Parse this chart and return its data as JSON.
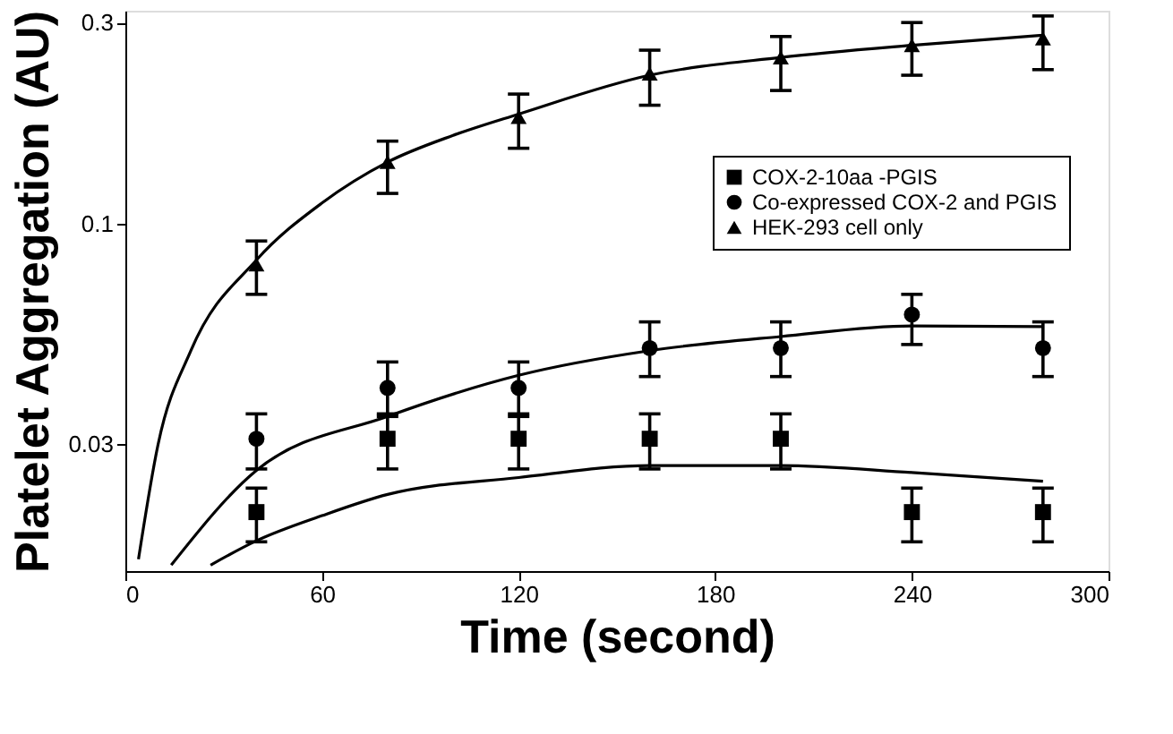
{
  "chart_data": {
    "type": "scatter",
    "xlabel": "Time (second)",
    "ylabel": "Platelet Aggregation (AU)",
    "log": "y",
    "xlim": [
      0,
      300
    ],
    "xticks": [
      0,
      60,
      120,
      180,
      240,
      300
    ],
    "ylim": [
      0.015,
      0.32
    ],
    "yticks": [
      0.03,
      0.1,
      0.3
    ],
    "grid": false,
    "legend": "top right",
    "series": [
      {
        "name": "COX-2-10aa -PGIS",
        "marker": "square",
        "color": "#000000",
        "x": [
          40,
          80,
          120,
          160,
          200,
          240,
          280
        ],
        "values": [
          0.0207,
          0.0309,
          0.0309,
          0.0309,
          0.0309,
          0.0207,
          0.0207
        ],
        "errors": [
          [
            0.0176,
            0.0236
          ],
          [
            0.0262,
            0.0354
          ],
          [
            0.0262,
            0.0354
          ],
          [
            0.0262,
            0.0354
          ],
          [
            0.0262,
            0.0354
          ],
          [
            0.0176,
            0.0236
          ],
          [
            0.0176,
            0.0236
          ]
        ]
      },
      {
        "name": "Co-expressed COX-2 and PGIS",
        "marker": "circle",
        "color": "#000000",
        "x": [
          40,
          80,
          120,
          160,
          200,
          240,
          280
        ],
        "values": [
          0.0309,
          0.0408,
          0.0408,
          0.0507,
          0.0507,
          0.0609,
          0.0507
        ],
        "errors": [
          [
            0.0262,
            0.0354
          ],
          [
            0.0349,
            0.047
          ],
          [
            0.0349,
            0.047
          ],
          [
            0.0434,
            0.0585
          ],
          [
            0.0434,
            0.0585
          ],
          [
            0.0517,
            0.068
          ],
          [
            0.0434,
            0.0585
          ]
        ]
      },
      {
        "name": "HEK-293 cell only",
        "marker": "triangle",
        "color": "#000000",
        "x": [
          40,
          80,
          120,
          160,
          200,
          240,
          280
        ],
        "values": [
          0.08,
          0.14,
          0.179,
          0.227,
          0.248,
          0.265,
          0.275
        ],
        "errors": [
          [
            0.068,
            0.091
          ],
          [
            0.118,
            0.157
          ],
          [
            0.151,
            0.203
          ],
          [
            0.191,
            0.258
          ],
          [
            0.207,
            0.278
          ],
          [
            0.225,
            0.3
          ],
          [
            0.232,
            0.311
          ]
        ]
      },
      {
        "type": "line",
        "color": "#000000",
        "x": [
          26,
          40,
          60,
          80,
          120,
          160,
          200,
          240,
          280
        ],
        "values": [
          0.0155,
          0.0177,
          0.0203,
          0.0228,
          0.025,
          0.0267,
          0.0267,
          0.0257,
          0.0245
        ]
      },
      {
        "type": "line",
        "color": "#000000",
        "x": [
          14,
          40,
          80,
          120,
          160,
          200,
          240,
          280
        ],
        "values": [
          0.0155,
          0.026,
          0.0349,
          0.0437,
          0.05,
          0.054,
          0.0572,
          0.057
        ]
      },
      {
        "type": "line",
        "color": "#000000",
        "x": [
          4,
          10,
          20,
          40,
          60,
          80,
          100,
          120,
          160,
          200,
          240,
          280
        ],
        "values": [
          0.016,
          0.03,
          0.05,
          0.082,
          0.112,
          0.14,
          0.162,
          0.182,
          0.225,
          0.248,
          0.265,
          0.28
        ]
      }
    ]
  }
}
